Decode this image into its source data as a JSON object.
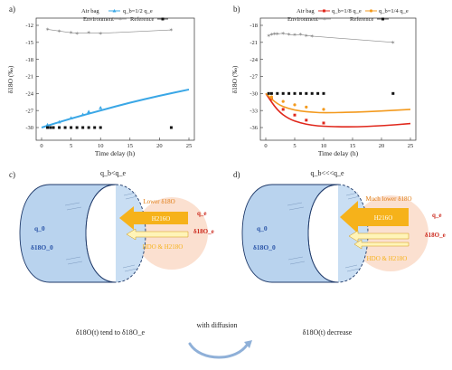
{
  "panels": {
    "a": {
      "label": "a)",
      "legend_title": "Air bag",
      "legend_qb": "q_b=1/2 q_e",
      "legend_env": "Environment",
      "legend_ref": "Reference",
      "xlabel": "Time delay (h)",
      "ylabel": "δ18O (‰)",
      "xticks": [
        "0",
        "5",
        "10",
        "15",
        "20",
        "25"
      ],
      "yticks": [
        "-12",
        "-15",
        "-18",
        "-21",
        "-24",
        "-27",
        "-30"
      ]
    },
    "b": {
      "label": "b)",
      "legend_title": "Air bag",
      "legend_q1": "q_b=1/8 q_e",
      "legend_q2": "q_b=1/4 q_e",
      "legend_env": "Environment",
      "legend_ref": "Reference",
      "xlabel": "Time delay (h)",
      "ylabel": "δ18O (‰)",
      "xticks": [
        "0",
        "5",
        "10",
        "15",
        "20",
        "25"
      ],
      "yticks": [
        "-18",
        "-21",
        "-24",
        "-27",
        "-30",
        "-33",
        "-36"
      ]
    },
    "c": {
      "label": "c)",
      "title": "q_b<q_e",
      "cyl_q": "q_0",
      "cyl_d": "δ18O_0",
      "lower_label": "Lower δ18O",
      "h2o_label": "H216O",
      "hdo_label": "HDO & H218O",
      "qe_label": "q_e",
      "de_label": "δ18O_e",
      "caption": "δ18O(t) tend to δ18O_e"
    },
    "d": {
      "label": "d)",
      "title": "q_b<<<q_e",
      "cyl_q": "q_0",
      "cyl_d": "δ18O_0",
      "lower_label": "Much lower δ18O",
      "h2o_label": "H216O",
      "hdo_label": "HDO & H218O",
      "qe_label": "q_e",
      "de_label": "δ18O_e",
      "caption": "δ18O(t)  decrease"
    },
    "diffusion_label": "with diffusion"
  },
  "colors": {
    "blue_curve": "#3aa7e6",
    "red_curve": "#e0281c",
    "orange_curve": "#f39a1e",
    "env": "#888888",
    "ref": "#111111",
    "cylinder": "#b9d3ee",
    "bubble": "#fbe0d0",
    "arrow_yellow": "#f6b21a"
  },
  "chart_data": [
    {
      "type": "line",
      "panel": "a",
      "x_range": [
        0,
        25
      ],
      "y_range": [
        -30,
        -12
      ],
      "series": [
        {
          "name": "q_b=1/2 q_e",
          "kind": "points",
          "x": [
            1,
            3,
            5,
            7,
            8,
            10
          ],
          "y": [
            -29.5,
            -29.0,
            -28.3,
            -27.7,
            -27.2,
            -26.5
          ]
        },
        {
          "name": "q_b=1/2 q_e",
          "kind": "curve",
          "x": [
            0,
            5,
            10,
            15,
            20,
            25
          ],
          "y": [
            -30,
            -28.4,
            -27.0,
            -25.6,
            -24.4,
            -23.3
          ]
        },
        {
          "name": "Environment",
          "kind": "env",
          "x": [
            1,
            3,
            5,
            6,
            8,
            10,
            22
          ],
          "y": [
            -12.7,
            -13.0,
            -13.3,
            -13.4,
            -13.3,
            -13.4,
            -12.8
          ]
        },
        {
          "name": "Reference",
          "kind": "points",
          "x": [
            1,
            1.5,
            2,
            3,
            4,
            5,
            6,
            7,
            8,
            9,
            10,
            22
          ],
          "y": [
            -30,
            -30,
            -30,
            -30,
            -30,
            -30,
            -30,
            -30,
            -30,
            -30,
            -30,
            -30
          ]
        }
      ]
    },
    {
      "type": "line",
      "panel": "b",
      "x_range": [
        0,
        25
      ],
      "y_range": [
        -36,
        -18
      ],
      "series": [
        {
          "name": "q_b=1/8 q_e",
          "kind": "points",
          "x": [
            1,
            3,
            5,
            7,
            10
          ],
          "y": [
            -31.0,
            -32.8,
            -33.8,
            -34.7,
            -35.2
          ]
        },
        {
          "name": "q_b=1/8 q_e",
          "kind": "curve",
          "x": [
            0,
            2,
            4,
            6,
            8,
            10,
            15,
            20,
            25
          ],
          "y": [
            -30,
            -33.0,
            -34.5,
            -35.2,
            -35.6,
            -35.8,
            -35.9,
            -35.7,
            -35.3
          ]
        },
        {
          "name": "q_b=1/4 q_e",
          "kind": "points",
          "x": [
            1,
            3,
            5,
            7,
            10
          ],
          "y": [
            -30.6,
            -31.4,
            -32.0,
            -32.4,
            -32.8
          ]
        },
        {
          "name": "q_b=1/4 q_e",
          "kind": "curve",
          "x": [
            0,
            2,
            4,
            6,
            8,
            10,
            15,
            20,
            25
          ],
          "y": [
            -30,
            -31.9,
            -32.7,
            -33.1,
            -33.3,
            -33.4,
            -33.3,
            -33.1,
            -32.8
          ]
        },
        {
          "name": "Environment",
          "kind": "env",
          "x": [
            0.5,
            1,
            1.5,
            2,
            3,
            4,
            5,
            6,
            7,
            8,
            22
          ],
          "y": [
            -19.8,
            -19.6,
            -19.5,
            -19.5,
            -19.4,
            -19.6,
            -19.7,
            -19.6,
            -19.8,
            -19.9,
            -21.0
          ]
        },
        {
          "name": "Reference",
          "kind": "points",
          "x": [
            0.5,
            1,
            2,
            3,
            4,
            5,
            6,
            7,
            8,
            9,
            10,
            22
          ],
          "y": [
            -30,
            -30,
            -30,
            -30,
            -30,
            -30,
            -30,
            -30,
            -30,
            -30,
            -30,
            -30
          ]
        }
      ]
    }
  ]
}
